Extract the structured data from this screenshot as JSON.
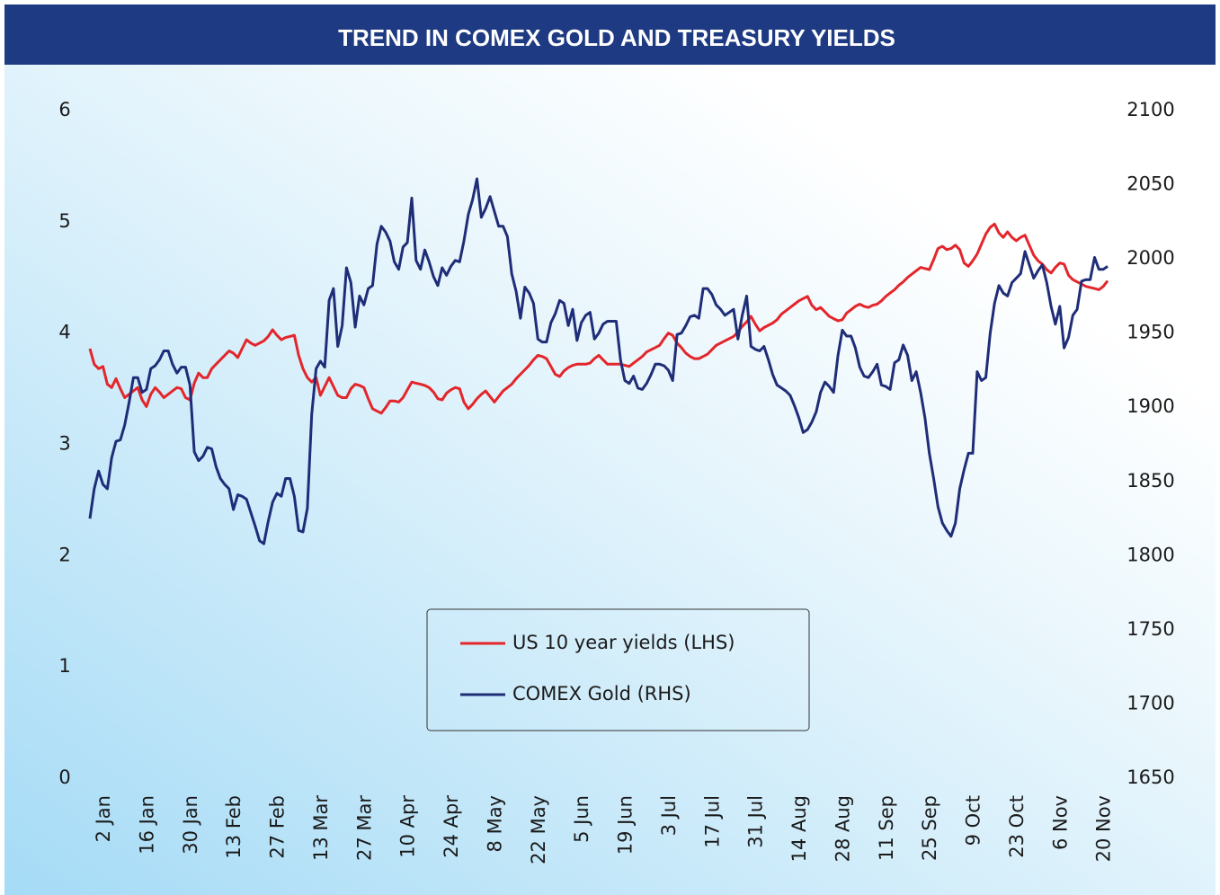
{
  "chart_data": {
    "type": "line",
    "title": "TREND IN COMEX GOLD AND TREASURY YIELDS",
    "categories": [
      "2 Jan",
      null,
      null,
      null,
      null,
      null,
      null,
      null,
      null,
      null,
      "16 Jan",
      null,
      null,
      null,
      null,
      null,
      null,
      null,
      null,
      null,
      "30 Jan",
      null,
      null,
      null,
      null,
      null,
      null,
      null,
      null,
      null,
      "13 Feb",
      null,
      null,
      null,
      null,
      null,
      null,
      null,
      null,
      null,
      "27 Feb",
      null,
      null,
      null,
      null,
      null,
      null,
      null,
      null,
      null,
      "13 Mar",
      null,
      null,
      null,
      null,
      null,
      null,
      null,
      null,
      null,
      "27 Mar",
      null,
      null,
      null,
      null,
      null,
      null,
      null,
      null,
      null,
      "10 Apr",
      null,
      null,
      null,
      null,
      null,
      null,
      null,
      null,
      null,
      "24 Apr",
      null,
      null,
      null,
      null,
      null,
      null,
      null,
      null,
      null,
      "8 May",
      null,
      null,
      null,
      null,
      null,
      null,
      null,
      null,
      null,
      "22 May",
      null,
      null,
      null,
      null,
      null,
      null,
      null,
      null,
      null,
      "5 Jun",
      null,
      null,
      null,
      null,
      null,
      null,
      null,
      null,
      null,
      "19 Jun",
      null,
      null,
      null,
      null,
      null,
      null,
      null,
      null,
      null,
      "3 Jul",
      null,
      null,
      null,
      null,
      null,
      null,
      null,
      null,
      null,
      "17 Jul",
      null,
      null,
      null,
      null,
      null,
      null,
      null,
      null,
      null,
      "31 Jul",
      null,
      null,
      null,
      null,
      null,
      null,
      null,
      null,
      null,
      "14 Aug",
      null,
      null,
      null,
      null,
      null,
      null,
      null,
      null,
      null,
      "28 Aug",
      null,
      null,
      null,
      null,
      null,
      null,
      null,
      null,
      null,
      "11 Sep",
      null,
      null,
      null,
      null,
      null,
      null,
      null,
      null,
      null,
      "25 Sep",
      null,
      null,
      null,
      null,
      null,
      null,
      null,
      null,
      null,
      "9 Oct",
      null,
      null,
      null,
      null,
      null,
      null,
      null,
      null,
      null,
      "23 Oct",
      null,
      null,
      null,
      null,
      null,
      null,
      null,
      null,
      null,
      "6 Nov",
      null,
      null,
      null,
      null,
      null,
      null,
      null,
      null,
      null,
      "20 Nov",
      null,
      null,
      null,
      null
    ],
    "series": [
      {
        "name": "US 10 year yields (LHS)",
        "color": "#e3262b",
        "axis": "y",
        "values": [
          3.86,
          3.72,
          3.68,
          3.7,
          3.54,
          3.51,
          3.59,
          3.5,
          3.42,
          3.45,
          3.48,
          3.51,
          3.4,
          3.34,
          3.45,
          3.51,
          3.47,
          3.42,
          3.45,
          3.48,
          3.51,
          3.5,
          3.42,
          3.4,
          3.55,
          3.64,
          3.6,
          3.6,
          3.68,
          3.72,
          3.76,
          3.8,
          3.84,
          3.82,
          3.78,
          3.86,
          3.94,
          3.91,
          3.89,
          3.91,
          3.93,
          3.97,
          4.03,
          3.98,
          3.94,
          3.96,
          3.97,
          3.98,
          3.8,
          3.68,
          3.6,
          3.56,
          3.6,
          3.44,
          3.52,
          3.6,
          3.52,
          3.44,
          3.42,
          3.42,
          3.5,
          3.54,
          3.53,
          3.51,
          3.41,
          3.32,
          3.3,
          3.28,
          3.33,
          3.39,
          3.39,
          3.38,
          3.42,
          3.49,
          3.56,
          3.55,
          3.54,
          3.53,
          3.51,
          3.47,
          3.41,
          3.4,
          3.46,
          3.49,
          3.51,
          3.5,
          3.38,
          3.32,
          3.36,
          3.41,
          3.45,
          3.48,
          3.43,
          3.38,
          3.43,
          3.48,
          3.51,
          3.54,
          3.59,
          3.63,
          3.67,
          3.71,
          3.76,
          3.8,
          3.79,
          3.77,
          3.7,
          3.63,
          3.61,
          3.66,
          3.69,
          3.71,
          3.72,
          3.72,
          3.72,
          3.73,
          3.77,
          3.8,
          3.76,
          3.72,
          3.72,
          3.72,
          3.72,
          3.71,
          3.7,
          3.73,
          3.76,
          3.79,
          3.83,
          3.85,
          3.87,
          3.89,
          3.95,
          4.0,
          3.98,
          3.91,
          3.87,
          3.82,
          3.79,
          3.77,
          3.77,
          3.79,
          3.81,
          3.85,
          3.89,
          3.91,
          3.93,
          3.95,
          3.97,
          4.01,
          4.06,
          4.1,
          4.15,
          4.08,
          4.02,
          4.05,
          4.07,
          4.09,
          4.12,
          4.17,
          4.2,
          4.23,
          4.26,
          4.29,
          4.31,
          4.33,
          4.25,
          4.21,
          4.23,
          4.19,
          4.15,
          4.13,
          4.11,
          4.12,
          4.18,
          4.21,
          4.24,
          4.26,
          4.24,
          4.23,
          4.25,
          4.26,
          4.29,
          4.33,
          4.36,
          4.39,
          4.43,
          4.46,
          4.5,
          4.53,
          4.56,
          4.59,
          4.58,
          4.57,
          4.66,
          4.76,
          4.78,
          4.75,
          4.76,
          4.79,
          4.75,
          4.63,
          4.6,
          4.65,
          4.71,
          4.8,
          4.89,
          4.95,
          4.98,
          4.9,
          4.86,
          4.91,
          4.86,
          4.83,
          4.86,
          4.88,
          4.79,
          4.7,
          4.65,
          4.62,
          4.57,
          4.54,
          4.59,
          4.63,
          4.62,
          4.52,
          4.48,
          4.46,
          4.44,
          4.42,
          4.41,
          4.4,
          4.39,
          4.42,
          4.47
        ]
      },
      {
        "name": "COMEX Gold (RHS)",
        "color": "#1f2d78",
        "axis": "y2",
        "values": [
          1825,
          1845,
          1857,
          1848,
          1845,
          1866,
          1877,
          1878,
          1888,
          1903,
          1920,
          1920,
          1910,
          1912,
          1926,
          1928,
          1932,
          1938,
          1938,
          1929,
          1923,
          1927,
          1927,
          1915,
          1870,
          1864,
          1867,
          1873,
          1872,
          1860,
          1852,
          1848,
          1845,
          1831,
          1841,
          1840,
          1838,
          1829,
          1820,
          1810,
          1808,
          1823,
          1836,
          1842,
          1840,
          1852,
          1852,
          1840,
          1817,
          1816,
          1832,
          1895,
          1926,
          1931,
          1927,
          1972,
          1980,
          1941,
          1955,
          1994,
          1984,
          1954,
          1975,
          1969,
          1980,
          1982,
          2010,
          2022,
          2018,
          2012,
          1998,
          1993,
          2008,
          2011,
          2041,
          1999,
          1993,
          2006,
          1998,
          1988,
          1982,
          1994,
          1989,
          1995,
          1999,
          1998,
          2012,
          2030,
          2040,
          2054,
          2028,
          2034,
          2042,
          2032,
          2022,
          2022,
          2015,
          1990,
          1978,
          1960,
          1981,
          1977,
          1970,
          1946,
          1944,
          1944,
          1957,
          1963,
          1972,
          1970,
          1955,
          1966,
          1945,
          1957,
          1962,
          1964,
          1946,
          1950,
          1956,
          1958,
          1958,
          1958,
          1932,
          1918,
          1916,
          1921,
          1913,
          1912,
          1916,
          1922,
          1929,
          1929,
          1928,
          1925,
          1918,
          1949,
          1950,
          1955,
          1961,
          1962,
          1960,
          1980,
          1980,
          1976,
          1969,
          1966,
          1962,
          1964,
          1966,
          1946,
          1962,
          1975,
          1941,
          1939,
          1938,
          1941,
          1932,
          1922,
          1915,
          1913,
          1911,
          1908,
          1901,
          1893,
          1883,
          1885,
          1890,
          1897,
          1910,
          1917,
          1914,
          1910,
          1935,
          1952,
          1948,
          1948,
          1940,
          1927,
          1921,
          1920,
          1924,
          1929,
          1915,
          1914,
          1912,
          1930,
          1932,
          1942,
          1935,
          1918,
          1924,
          1910,
          1893,
          1869,
          1852,
          1833,
          1822,
          1817,
          1813,
          1822,
          1845,
          1858,
          1869,
          1869,
          1924,
          1918,
          1920,
          1950,
          1970,
          1982,
          1977,
          1975,
          1984,
          1987,
          1990,
          2005,
          1996,
          1987,
          1992,
          1996,
          1984,
          1968,
          1956,
          1968,
          1940,
          1947,
          1962,
          1966,
          1985,
          1986,
          1986,
          2001,
          1993,
          1993,
          1995
        ]
      }
    ],
    "ylim": [
      0,
      6
    ],
    "yticks": [
      0,
      1,
      2,
      3,
      4,
      5,
      6
    ],
    "y2lim": [
      1650,
      2100
    ],
    "y2ticks": [
      1650,
      1700,
      1750,
      1800,
      1850,
      1900,
      1950,
      2000,
      2050,
      2100
    ]
  }
}
